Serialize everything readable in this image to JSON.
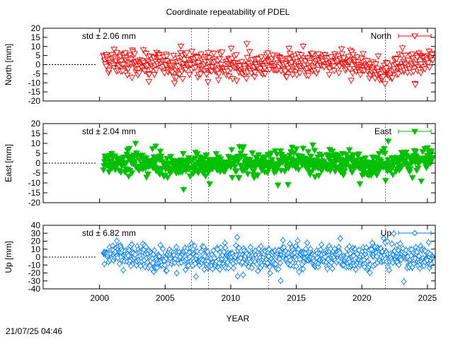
{
  "chart_data": {
    "type": "scatter",
    "title": "Coordinate repeatability of PDEL",
    "xlabel": "YEAR",
    "xlim": [
      1995.7,
      2025.6
    ],
    "xticks": [
      2000,
      2005,
      2010,
      2015,
      2020,
      2025
    ],
    "event_lines": [
      2007.0,
      2008.3,
      2012.9,
      2021.8
    ],
    "panels": [
      {
        "name": "North",
        "ylabel": "North [mm]",
        "ylim": [
          -20,
          20
        ],
        "yticks": [
          -20,
          -15,
          -10,
          -5,
          0,
          5,
          10,
          15,
          20
        ],
        "std_label": "std ± 2.06 mm",
        "legend_label": "North",
        "color": "#ff0000",
        "marker": "triangle-down-open",
        "series": {
          "x": [
            2000.3,
            2001.0,
            2002.0,
            2003.0,
            2004.0,
            2005.0,
            2006.0,
            2007.0,
            2008.0,
            2009.0,
            2010.0,
            2011.0,
            2012.0,
            2013.0,
            2014.0,
            2015.0,
            2016.0,
            2017.0,
            2018.0,
            2019.0,
            2020.0,
            2021.0,
            2021.8,
            2022.5,
            2023.5,
            2024.5,
            2025.4
          ],
          "y": [
            2.0,
            1.5,
            1.0,
            0.8,
            0.5,
            0.2,
            0.0,
            0.5,
            -0.5,
            -0.5,
            -0.8,
            -1.0,
            -0.5,
            0.0,
            0.0,
            0.2,
            0.5,
            0.5,
            0.8,
            0.5,
            -1.0,
            -2.5,
            -5.0,
            -1.0,
            -1.0,
            0.5,
            2.5
          ],
          "spread": 5.5
        }
      },
      {
        "name": "East",
        "ylabel": "East [mm]",
        "ylim": [
          -20,
          20
        ],
        "yticks": [
          -20,
          -15,
          -10,
          -5,
          0,
          5,
          10,
          15,
          20
        ],
        "std_label": "std ± 2.04 mm",
        "legend_label": "East",
        "color": "#00c000",
        "marker": "triangle-down-filled",
        "series": {
          "x": [
            2000.3,
            2001.0,
            2002.0,
            2003.0,
            2004.0,
            2005.0,
            2006.0,
            2007.0,
            2008.0,
            2009.0,
            2010.0,
            2011.0,
            2012.0,
            2013.0,
            2014.0,
            2015.0,
            2016.0,
            2017.0,
            2018.0,
            2019.0,
            2020.0,
            2021.0,
            2022.0,
            2023.0,
            2024.0,
            2025.4
          ],
          "y": [
            0.5,
            1.5,
            0.5,
            0.0,
            -0.5,
            -1.0,
            -1.5,
            -1.5,
            -1.0,
            -0.5,
            -0.5,
            0.0,
            -0.5,
            0.0,
            0.5,
            0.5,
            0.0,
            0.5,
            0.5,
            0.0,
            -0.5,
            0.0,
            0.5,
            1.0,
            1.5,
            2.5
          ],
          "spread": 5.0
        }
      },
      {
        "name": "Up",
        "ylabel": "Up [mm]",
        "ylim": [
          -40,
          40
        ],
        "yticks": [
          -40,
          -30,
          -20,
          -10,
          0,
          10,
          20,
          30,
          40
        ],
        "std_label": "std ± 6.82 mm",
        "legend_label": "Up",
        "color": "#0080ff",
        "marker": "diamond-open",
        "series": {
          "x": [
            2000.3,
            2001.0,
            2002.0,
            2003.0,
            2004.0,
            2005.0,
            2006.0,
            2007.0,
            2008.0,
            2009.0,
            2010.0,
            2011.0,
            2012.0,
            2013.0,
            2014.0,
            2015.0,
            2016.0,
            2017.0,
            2018.0,
            2019.0,
            2020.0,
            2021.0,
            2022.0,
            2023.0,
            2024.0,
            2025.4
          ],
          "y": [
            0.0,
            3.0,
            2.0,
            0.0,
            -1.0,
            -2.0,
            -1.0,
            0.0,
            0.0,
            0.0,
            0.0,
            0.0,
            -1.0,
            0.0,
            0.0,
            1.0,
            0.0,
            0.0,
            0.0,
            0.0,
            0.0,
            2.0,
            1.0,
            0.0,
            0.0,
            -1.0
          ],
          "spread": 14.0
        }
      }
    ]
  },
  "footer": {
    "timestamp": "21/07/25 04:46"
  }
}
